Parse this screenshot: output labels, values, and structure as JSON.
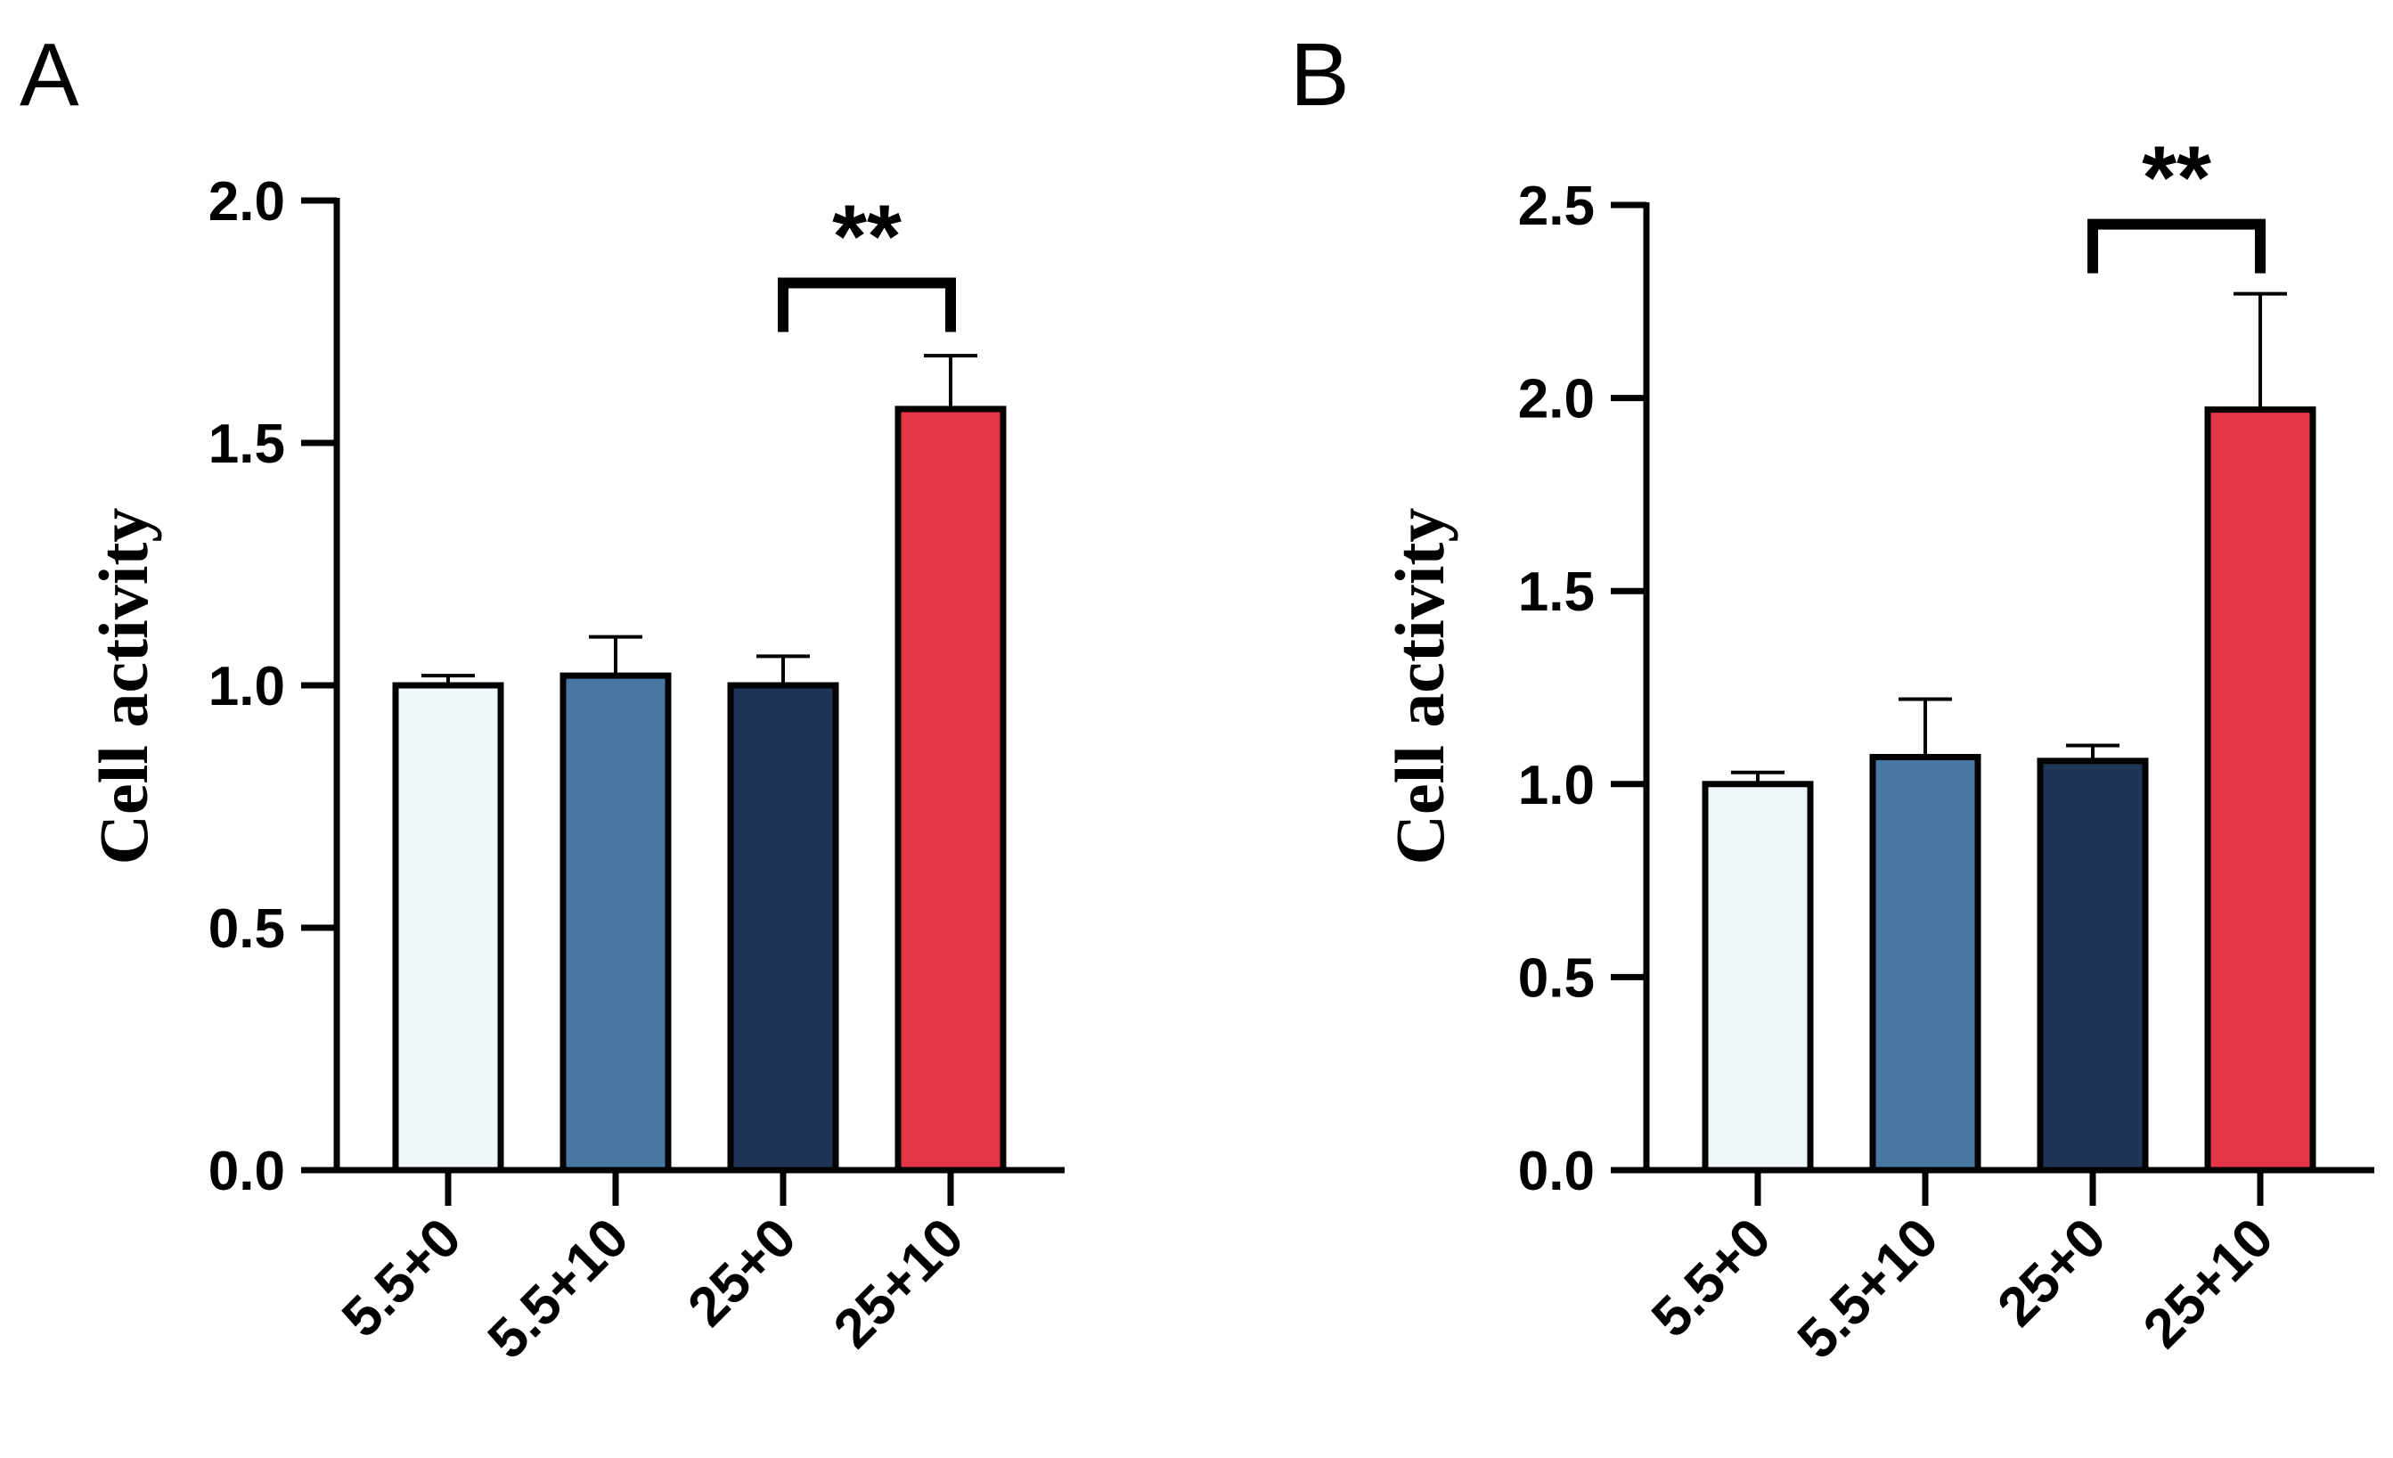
{
  "chart_data": [
    {
      "panel_label": "A",
      "type": "bar",
      "title": "",
      "xlabel": "",
      "ylabel": "Cell activity",
      "ylim": [
        0,
        2.0
      ],
      "yticks": [
        "0.0",
        "0.5",
        "1.0",
        "1.5",
        "2.0"
      ],
      "categories": [
        "5.5+0",
        "5.5+10",
        "25+0",
        "25+10"
      ],
      "values": [
        1.0,
        1.02,
        1.0,
        1.57
      ],
      "errors": [
        0.02,
        0.08,
        0.06,
        0.11
      ],
      "colors": [
        "#eef8fa",
        "#4878a2",
        "#1e3557",
        "#e43546"
      ],
      "significance": {
        "from": 2,
        "to": 3,
        "label": "**",
        "bracket_value": 1.83
      }
    },
    {
      "panel_label": "B",
      "type": "bar",
      "title": "",
      "xlabel": "",
      "ylabel": "Cell activity",
      "ylim": [
        0,
        2.5
      ],
      "yticks": [
        "0.0",
        "0.5",
        "1.0",
        "1.5",
        "2.0",
        "2.5"
      ],
      "categories": [
        "5.5+0",
        "5.5+10",
        "25+0",
        "25+10"
      ],
      "values": [
        1.0,
        1.07,
        1.06,
        1.97
      ],
      "errors": [
        0.03,
        0.15,
        0.04,
        0.3
      ],
      "colors": [
        "#eef8fa",
        "#4878a2",
        "#1e3557",
        "#e43546"
      ],
      "significance": {
        "from": 2,
        "to": 3,
        "label": "**",
        "bracket_value": 2.45
      }
    }
  ]
}
